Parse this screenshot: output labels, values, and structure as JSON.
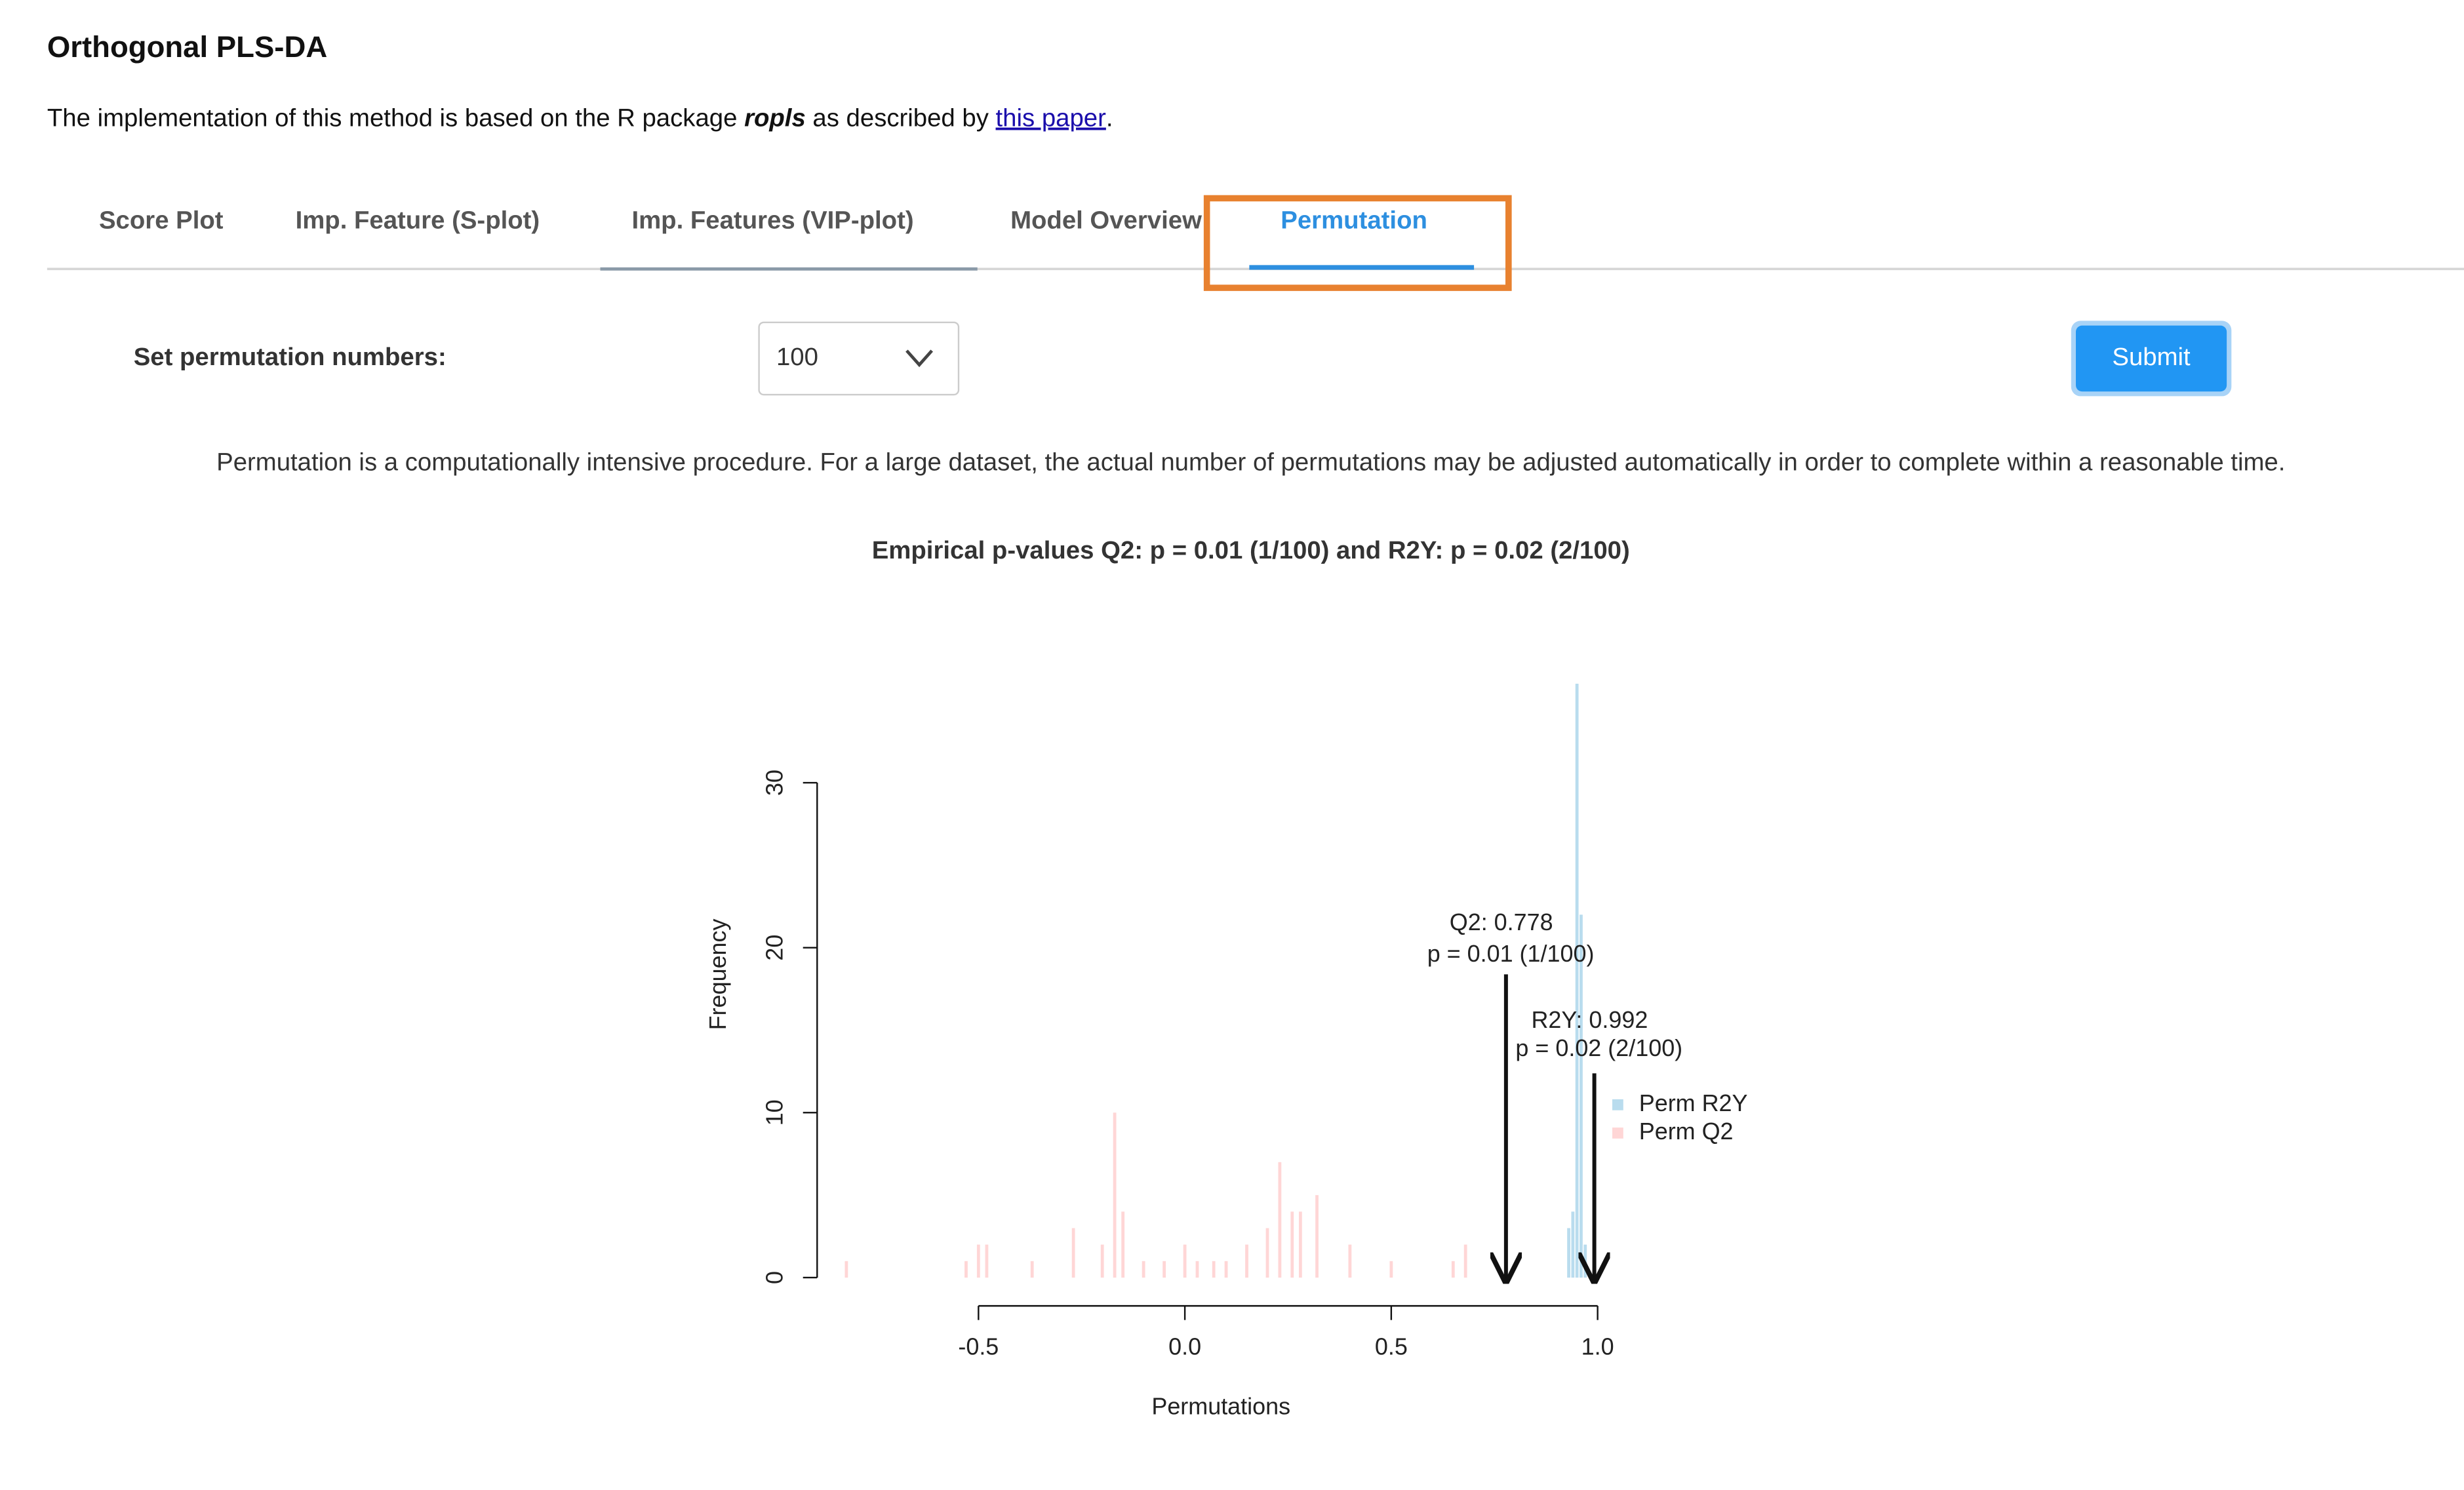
{
  "header": {
    "title": "Orthogonal PLS-DA",
    "description": {
      "before": "The implementation of this method is based on the R package ",
      "package": "ropls",
      "middle": " as described by ",
      "link": "this paper",
      "after": "."
    }
  },
  "tabs": [
    "Score Plot",
    "Imp. Feature (S-plot)",
    "Imp. Features (VIP-plot)",
    "Model Overview",
    "Permutation"
  ],
  "form": {
    "label": "Set permutation numbers:",
    "selected": "100",
    "button": "Submit"
  },
  "note": "Permutation is a computationally intensive procedure. For a large dataset, the actual number of permutations may be adjusted automatically in order to complete within a reasonable time.",
  "result_title": "Empirical p-values Q2: p = 0.01 (1/100) and R2Y: p = 0.02 (2/100)",
  "chart_data": {
    "type": "histogram",
    "xlabel": "Permutations",
    "ylabel": "Frequency",
    "xlim": [
      -0.9,
      1.05
    ],
    "ylim": [
      0,
      36
    ],
    "xticks": [
      -0.5,
      {
        "value": 0,
        "label": "0.0"
      },
      0.5,
      {
        "value": 1,
        "label": "1.0"
      }
    ],
    "yticks": [
      0,
      10,
      20,
      30
    ],
    "series": [
      {
        "name": "Perm R2Y",
        "color": "#b9dcee",
        "x": [
          0.93,
          0.94,
          0.95,
          0.96,
          0.97
        ],
        "values": [
          3,
          4,
          36,
          22,
          2
        ]
      },
      {
        "name": "Perm Q2",
        "color": "#ffd6d6",
        "x": [
          -0.82,
          -0.53,
          -0.5,
          -0.48,
          -0.37,
          -0.27,
          -0.2,
          -0.17,
          -0.15,
          -0.1,
          -0.05,
          0.0,
          0.03,
          0.07,
          0.1,
          0.15,
          0.2,
          0.23,
          0.26,
          0.28,
          0.32,
          0.4,
          0.5,
          0.65,
          0.68
        ],
        "values": [
          1,
          1,
          2,
          2,
          1,
          3,
          2,
          10,
          4,
          1,
          1,
          2,
          1,
          1,
          1,
          2,
          3,
          7,
          4,
          4,
          5,
          2,
          1,
          1,
          2
        ]
      }
    ],
    "arrows": [
      {
        "value": 0.778,
        "label": "Q2: 0.778",
        "p_label": "p = 0.01 (1/100)"
      },
      {
        "value": 0.992,
        "label": "R2Y: 0.992",
        "p_label": "p = 0.02 (2/100)"
      }
    ]
  }
}
